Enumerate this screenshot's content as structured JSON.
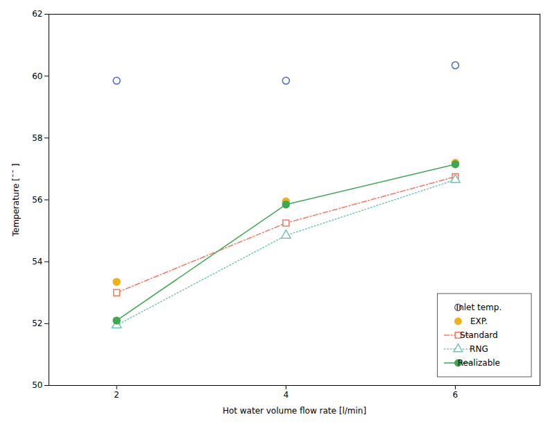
{
  "chart_data": {
    "type": "line",
    "xlabel": "Hot water volume flow rate [l/min]",
    "ylabel": "Temperature [¯¯ ]",
    "x": [
      2,
      4,
      6
    ],
    "series": [
      {
        "name": "Inlet temp.",
        "type": "scatter",
        "marker": "circle_open",
        "line_style": "none",
        "values": [
          59.85,
          59.85,
          60.35
        ]
      },
      {
        "name": "EXP.",
        "type": "scatter",
        "marker": "circle",
        "line_style": "none",
        "values": [
          53.35,
          55.95,
          57.2
        ]
      },
      {
        "name": "Standard",
        "type": "line",
        "marker": "square_open",
        "line_style": "dashdot",
        "values": [
          53.0,
          55.25,
          56.75
        ]
      },
      {
        "name": "RNG",
        "type": "line",
        "marker": "triangle_open",
        "line_style": "dotted",
        "values": [
          51.95,
          54.85,
          56.65
        ]
      },
      {
        "name": "Realizable",
        "type": "line",
        "marker": "circle",
        "line_style": "solid",
        "values": [
          52.1,
          55.85,
          57.15
        ]
      }
    ],
    "xlim": [
      1.2,
      7.0
    ],
    "ylim": [
      50,
      62
    ],
    "xticks": [
      2,
      4,
      6
    ],
    "yticks": [
      50,
      52,
      54,
      56,
      58,
      60,
      62
    ],
    "grid": false,
    "legend": "lower right"
  }
}
